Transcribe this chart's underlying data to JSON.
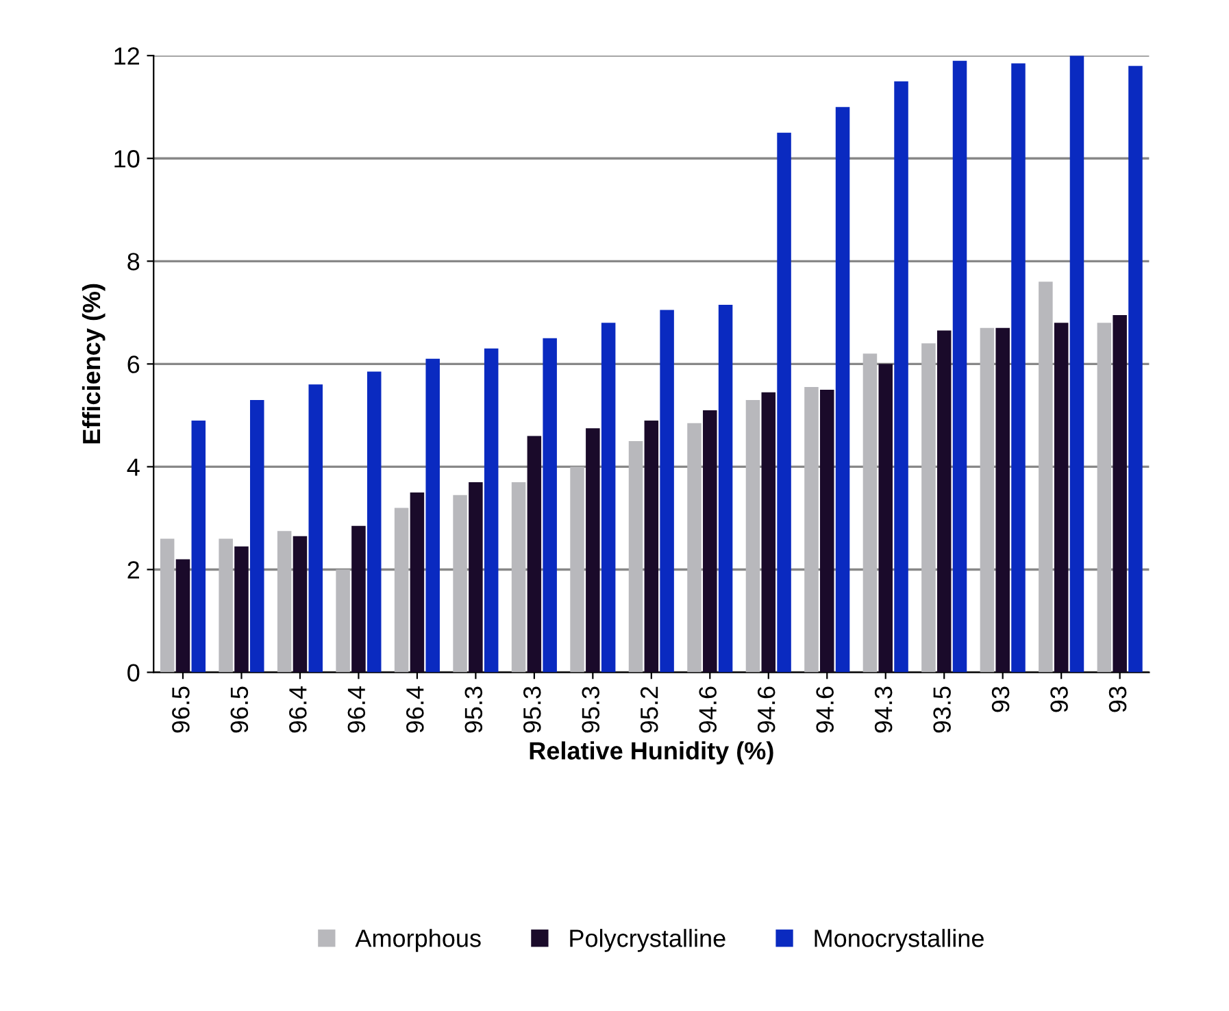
{
  "chart_data": {
    "type": "bar",
    "xlabel": "Relative Hunidity (%)",
    "ylabel": "Efficiency (%)",
    "categories": [
      "96.5",
      "96.5",
      "96.4",
      "96.4",
      "96.4",
      "95.3",
      "95.3",
      "95.3",
      "95.2",
      "94.6",
      "94.6",
      "94.6",
      "94.3",
      "93.5",
      "93",
      "93",
      "93"
    ],
    "series": [
      {
        "name": "Amorphous",
        "color": "#b8b8bc",
        "values": [
          2.6,
          2.6,
          2.75,
          2.0,
          3.2,
          3.45,
          3.7,
          4.0,
          4.5,
          4.85,
          5.3,
          5.55,
          6.2,
          6.4,
          6.7,
          7.6,
          6.8
        ]
      },
      {
        "name": "Polycrystalline",
        "color": "#1a0a2a",
        "values": [
          2.2,
          2.45,
          2.65,
          2.85,
          3.5,
          3.7,
          4.6,
          4.75,
          4.9,
          5.1,
          5.45,
          5.5,
          6.0,
          6.65,
          6.7,
          6.8,
          6.95
        ]
      },
      {
        "name": "Monocrystalline",
        "color": "#0a2ac0",
        "values": [
          4.9,
          5.3,
          5.6,
          5.85,
          6.1,
          6.3,
          6.5,
          6.8,
          7.05,
          7.15,
          10.5,
          11.0,
          11.5,
          11.9,
          11.85,
          12.0,
          11.8
        ]
      }
    ],
    "ylim": [
      0,
      12
    ],
    "yticks": [
      0,
      2,
      4,
      6,
      8,
      10,
      12
    ],
    "grid": "y",
    "legend": "bottom"
  }
}
